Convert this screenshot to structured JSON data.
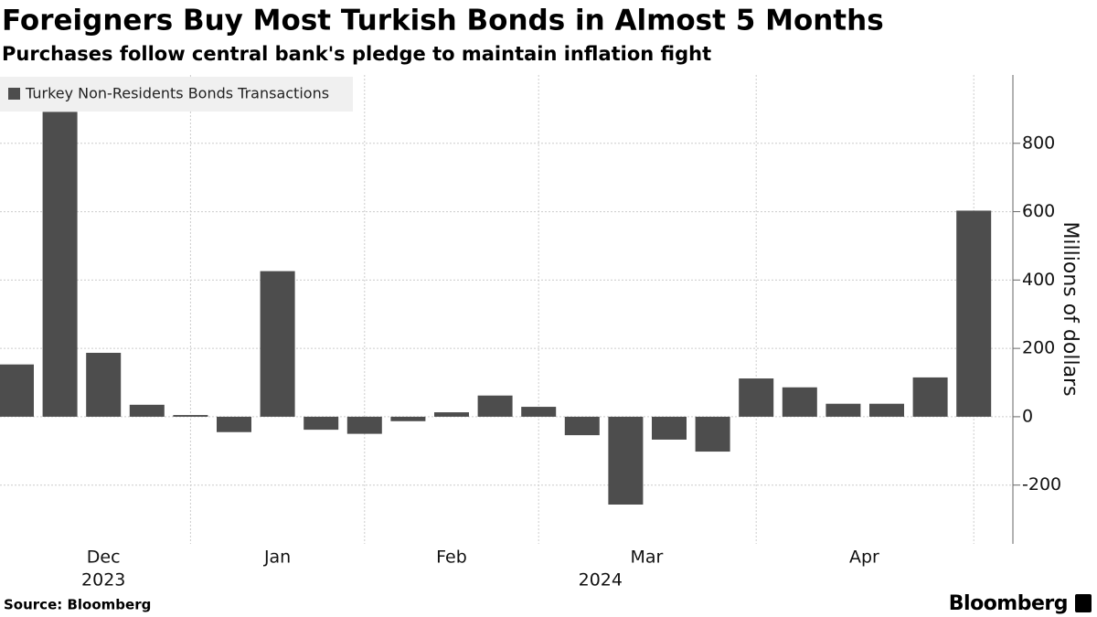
{
  "chart_data": {
    "type": "bar",
    "title": "Foreigners Buy Most Turkish Bonds in Almost 5 Months",
    "subtitle": "Purchases follow central bank's pledge to maintain inflation fight",
    "y_label": "Millions of dollars",
    "source": "Source: Bloomberg",
    "brand": "Bloomberg",
    "legend": "Turkey Non-Residents Bonds Transactions",
    "color": "#4d4d4d",
    "categories": [
      null,
      null,
      null,
      null,
      null,
      null,
      null,
      null,
      null,
      null,
      null,
      null,
      null,
      null,
      null,
      null,
      null,
      null,
      null,
      null,
      null,
      null,
      null
    ],
    "values": [
      153,
      892,
      187,
      35,
      5,
      -45,
      426,
      -38,
      -50,
      -13,
      13,
      62,
      29,
      -54,
      -257,
      -67,
      -102,
      112,
      86,
      38,
      38,
      115,
      603
    ],
    "month_labels": [
      "Dec",
      "Jan",
      "Feb",
      "Mar",
      "Apr"
    ],
    "year_labels": [
      "2023",
      "2024"
    ],
    "ylim": [
      -372,
      1000
    ],
    "yticks": [
      -200,
      0,
      200,
      400,
      600,
      800
    ],
    "grid": true
  }
}
